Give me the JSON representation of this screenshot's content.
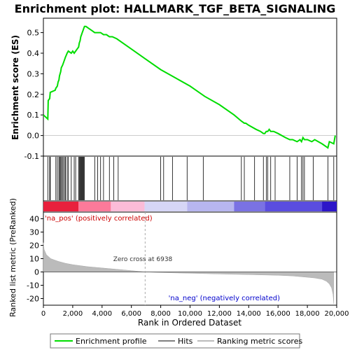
{
  "chart_data": [
    {
      "type": "line",
      "panel": "enrichment",
      "title": "Enrichment plot: HALLMARK_TGF_BETA_SIGNALING",
      "ylabel": "Enrichment score (ES)",
      "xlim": [
        0,
        20000
      ],
      "ylim": [
        -0.1,
        0.57
      ],
      "yticks": [
        "-0.1",
        "0.0",
        "0.1",
        "0.2",
        "0.3",
        "0.4",
        "0.5"
      ],
      "ytick_values": [
        -0.1,
        0.0,
        0.1,
        0.2,
        0.3,
        0.4,
        0.5
      ],
      "grid": false,
      "series": [
        {
          "name": "Enrichment profile",
          "color": "#00dd00",
          "x": [
            0,
            300,
            330,
            430,
            470,
            800,
            850,
            950,
            1000,
            1060,
            1100,
            1180,
            1220,
            1300,
            1350,
            1450,
            1500,
            1560,
            1620,
            1700,
            1900,
            2000,
            2100,
            2200,
            2300,
            2400,
            2450,
            2500,
            2550,
            2600,
            2650,
            2700,
            2750,
            2800,
            2900,
            3100,
            3300,
            3500,
            3700,
            3900,
            4100,
            4300,
            4500,
            4700,
            5000,
            6000,
            7000,
            8000,
            9000,
            10000,
            11000,
            12000,
            13000,
            13500,
            13700,
            13800,
            14000,
            14500,
            14800,
            15000,
            15100,
            15200,
            15300,
            15400,
            15500,
            15700,
            16000,
            16500,
            16800,
            17000,
            17300,
            17500,
            17600,
            17700,
            17800,
            18000,
            18300,
            18500,
            19000,
            19400,
            19500,
            19800,
            19900
          ],
          "y": [
            0.1,
            0.08,
            0.17,
            0.18,
            0.21,
            0.22,
            0.23,
            0.24,
            0.26,
            0.27,
            0.29,
            0.31,
            0.33,
            0.34,
            0.35,
            0.37,
            0.38,
            0.39,
            0.4,
            0.41,
            0.4,
            0.41,
            0.4,
            0.41,
            0.42,
            0.43,
            0.45,
            0.46,
            0.48,
            0.49,
            0.5,
            0.51,
            0.52,
            0.53,
            0.53,
            0.52,
            0.51,
            0.5,
            0.5,
            0.5,
            0.49,
            0.49,
            0.48,
            0.48,
            0.47,
            0.42,
            0.37,
            0.32,
            0.28,
            0.24,
            0.19,
            0.15,
            0.1,
            0.07,
            0.06,
            0.06,
            0.05,
            0.03,
            0.02,
            0.01,
            0.01,
            0.02,
            0.02,
            0.03,
            0.02,
            0.02,
            0.01,
            -0.01,
            -0.02,
            -0.02,
            -0.03,
            -0.02,
            -0.03,
            -0.01,
            -0.02,
            -0.02,
            -0.03,
            -0.02,
            -0.04,
            -0.06,
            -0.03,
            -0.04,
            0.0
          ]
        }
      ]
    },
    {
      "type": "scatter",
      "panel": "hits",
      "series": [
        {
          "name": "Hits",
          "color": "#000000",
          "x": [
            300,
            430,
            470,
            850,
            950,
            1060,
            1100,
            1180,
            1220,
            1300,
            1350,
            1450,
            1500,
            1620,
            1700,
            1900,
            2100,
            2200,
            2400,
            2450,
            2500,
            2550,
            2600,
            2650,
            2700,
            2750,
            2800,
            3500,
            3700,
            3900,
            4100,
            4500,
            4800,
            5100,
            8000,
            8200,
            8800,
            9800,
            10900,
            13500,
            13700,
            14400,
            15000,
            15200,
            15300,
            15500,
            15800,
            16800,
            17300,
            17600,
            17700,
            17800,
            18400,
            19400,
            19800
          ]
        }
      ]
    },
    {
      "type": "heatmap",
      "panel": "ranking-color-bar",
      "segments": [
        {
          "start": 0,
          "end": 2400,
          "color": "#e8213d"
        },
        {
          "start": 2400,
          "end": 4600,
          "color": "#fc7a9a"
        },
        {
          "start": 4600,
          "end": 6900,
          "color": "#fbbcd8"
        },
        {
          "start": 6900,
          "end": 9800,
          "color": "#d6d6f6"
        },
        {
          "start": 9800,
          "end": 13000,
          "color": "#b7b6ef"
        },
        {
          "start": 13000,
          "end": 15100,
          "color": "#7a72e3"
        },
        {
          "start": 15100,
          "end": 19000,
          "color": "#5a4ddf"
        },
        {
          "start": 19000,
          "end": 20000,
          "color": "#2d16c8"
        }
      ]
    },
    {
      "type": "area",
      "panel": "ranked-metric",
      "xlabel": "Rank in Ordered Dataset",
      "ylabel": "Ranked list metric (PreRanked)",
      "xlim": [
        0,
        20000
      ],
      "ylim": [
        -25,
        45
      ],
      "xticks": [
        "0",
        "2,000",
        "4,000",
        "6,000",
        "8,000",
        "10,000",
        "12,000",
        "14,000",
        "16,000",
        "18,000",
        "20,000"
      ],
      "xtick_values": [
        0,
        2000,
        4000,
        6000,
        8000,
        10000,
        12000,
        14000,
        16000,
        18000,
        20000
      ],
      "yticks": [
        "-20",
        "-10",
        "0",
        "10",
        "20",
        "30",
        "40"
      ],
      "ytick_values": [
        -20,
        -10,
        0,
        10,
        20,
        30,
        40
      ],
      "zero_cross": 6938,
      "series": [
        {
          "name": "Ranking metric scores",
          "color": "#bbbbbb",
          "x": [
            0,
            50,
            200,
            500,
            1000,
            1500,
            2000,
            3000,
            4000,
            5000,
            6000,
            6938,
            8000,
            10000,
            12000,
            14000,
            16000,
            17000,
            18000,
            18500,
            19000,
            19300,
            19500,
            19650,
            19750,
            19800
          ],
          "y": [
            22,
            17,
            13,
            10,
            8,
            6.5,
            5.5,
            4,
            3,
            2,
            1,
            0,
            -0.5,
            -1,
            -1.5,
            -2,
            -2.5,
            -3,
            -4,
            -4.5,
            -5.5,
            -7,
            -9,
            -12,
            -17,
            -24
          ]
        }
      ],
      "annotations": [
        "'na_pos' (positively correlated)",
        "Zero cross at 6938",
        "'na_neg' (negatively correlated)"
      ]
    }
  ],
  "legend": {
    "items": [
      {
        "label": "Enrichment profile",
        "color": "#00dd00"
      },
      {
        "label": "Hits",
        "color": "#000000"
      },
      {
        "label": "Ranking metric scores",
        "color": "#bbbbbb"
      }
    ]
  }
}
